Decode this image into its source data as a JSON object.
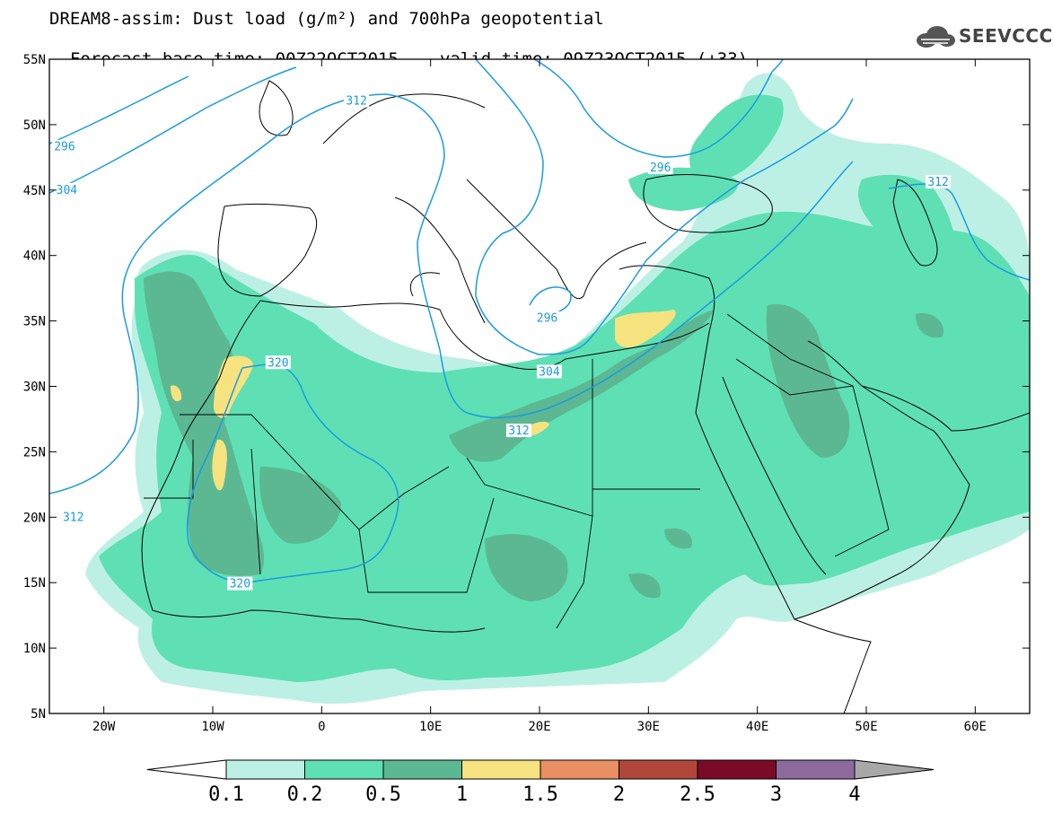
{
  "title": {
    "line1": "DREAM8-assim: Dust load (g/m²) and 700hPa geopotential",
    "base_time": "Forecast base time: 00Z22OCT2015",
    "valid_time": "valid time: 09Z23OCT2015 (+33)"
  },
  "logo": {
    "text": "SEEVCCC",
    "icon": "cloud-icon"
  },
  "map": {
    "lon_range": [
      -25,
      65
    ],
    "lat_range": [
      5,
      55
    ],
    "lat_ticks": [
      {
        "value": 55,
        "label": "55N"
      },
      {
        "value": 50,
        "label": "50N"
      },
      {
        "value": 45,
        "label": "45N"
      },
      {
        "value": 40,
        "label": "40N"
      },
      {
        "value": 35,
        "label": "35N"
      },
      {
        "value": 30,
        "label": "30N"
      },
      {
        "value": 25,
        "label": "25N"
      },
      {
        "value": 20,
        "label": "20N"
      },
      {
        "value": 15,
        "label": "15N"
      },
      {
        "value": 10,
        "label": "10N"
      },
      {
        "value": 5,
        "label": "5N"
      }
    ],
    "lon_ticks": [
      {
        "value": -20,
        "label": "20W"
      },
      {
        "value": -10,
        "label": "10W"
      },
      {
        "value": 0,
        "label": "0"
      },
      {
        "value": 10,
        "label": "10E"
      },
      {
        "value": 20,
        "label": "20E"
      },
      {
        "value": 30,
        "label": "30E"
      },
      {
        "value": 40,
        "label": "40E"
      },
      {
        "value": 50,
        "label": "50E"
      },
      {
        "value": 60,
        "label": "60E"
      }
    ],
    "contour_color": "#1a9ae0",
    "contour_labels": [
      {
        "text": "296",
        "lon": -23.6,
        "lat": 48.3
      },
      {
        "text": "304",
        "lon": -23.4,
        "lat": 45.0
      },
      {
        "text": "312",
        "lon": 3.2,
        "lat": 51.8
      },
      {
        "text": "296",
        "lon": 31.1,
        "lat": 46.7
      },
      {
        "text": "312",
        "lon": 56.6,
        "lat": 45.6
      },
      {
        "text": "296",
        "lon": 20.7,
        "lat": 35.2
      },
      {
        "text": "304",
        "lon": 20.9,
        "lat": 31.1
      },
      {
        "text": "312",
        "lon": 18.1,
        "lat": 26.6
      },
      {
        "text": "320",
        "lon": -4.0,
        "lat": 31.8
      },
      {
        "text": "312",
        "lon": -22.8,
        "lat": 20.0
      },
      {
        "text": "320",
        "lon": -7.5,
        "lat": 14.9
      }
    ]
  },
  "colorbar": {
    "labels": [
      "0.1",
      "0.2",
      "0.5",
      "1",
      "1.5",
      "2",
      "2.5",
      "3",
      "4"
    ],
    "colors": [
      "#bdf0e4",
      "#5ee0b4",
      "#5cb893",
      "#f6e27f",
      "#ea8e63",
      "#b0473a",
      "#7b0a26",
      "#8c6a9c"
    ],
    "under_color": "#ffffff",
    "over_color": "#a8a8a8"
  }
}
